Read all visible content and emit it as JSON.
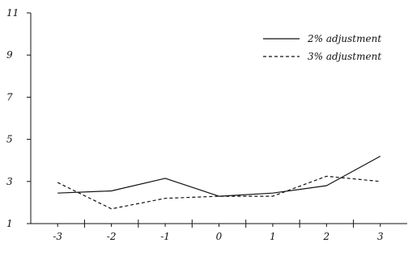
{
  "chart_data": {
    "type": "line",
    "title": "",
    "xlabel": "",
    "ylabel": "",
    "x": [
      -3,
      -2,
      -1,
      0,
      1,
      2,
      3
    ],
    "x_tick_labels": [
      "-3",
      "-2",
      "-1",
      "0",
      "1",
      "2",
      "3"
    ],
    "y_tick_labels": [
      "1",
      "3",
      "5",
      "7",
      "9",
      "11"
    ],
    "y_ticks": [
      1,
      3,
      5,
      7,
      9,
      11
    ],
    "xlim": [
      -3.5,
      3.5
    ],
    "ylim": [
      1,
      11
    ],
    "grid": false,
    "legend_position": "top-right",
    "series": [
      {
        "name": "2% adjustment",
        "style": "solid",
        "color": "#111111",
        "values": [
          2.45,
          2.55,
          3.15,
          2.3,
          2.45,
          2.8,
          4.2
        ]
      },
      {
        "name": "3% adjustment",
        "style": "dashed",
        "color": "#111111",
        "values": [
          2.95,
          1.7,
          2.2,
          2.3,
          2.3,
          3.25,
          3.0
        ]
      }
    ]
  }
}
